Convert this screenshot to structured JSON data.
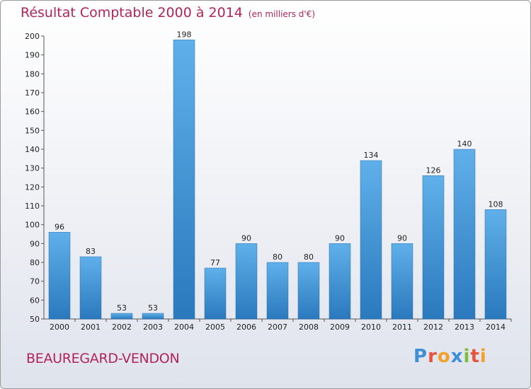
{
  "title": "Résultat Comptable 2000 à 2014",
  "subtitle": "(en milliers d'€)",
  "location": "BEAUREGARD-VENDON",
  "logo": {
    "text": "Proxiti",
    "letters": [
      "P",
      "r",
      "o",
      "x",
      "i",
      "t",
      "i"
    ],
    "colors": [
      "#3f8fd6",
      "#e8543a",
      "#f2a12b",
      "#3f8fd6",
      "#7cbd3a",
      "#e8543a",
      "#f2a12b"
    ]
  },
  "chart_data": {
    "type": "bar",
    "title": "Résultat Comptable 2000 à 2014",
    "subtitle": "(en milliers d'€)",
    "xlabel": "",
    "ylabel": "",
    "categories": [
      "2000",
      "2001",
      "2002",
      "2003",
      "2004",
      "2005",
      "2006",
      "2007",
      "2008",
      "2009",
      "2010",
      "2011",
      "2012",
      "2013",
      "2014"
    ],
    "values": [
      96,
      83,
      53,
      53,
      198,
      77,
      90,
      80,
      80,
      90,
      134,
      90,
      126,
      140,
      108
    ],
    "ylim": [
      50,
      200
    ],
    "yticks": [
      50,
      60,
      70,
      80,
      90,
      100,
      110,
      120,
      130,
      140,
      150,
      160,
      170,
      180,
      190,
      200
    ],
    "grid": false,
    "bar_color": "#3b93d6"
  }
}
